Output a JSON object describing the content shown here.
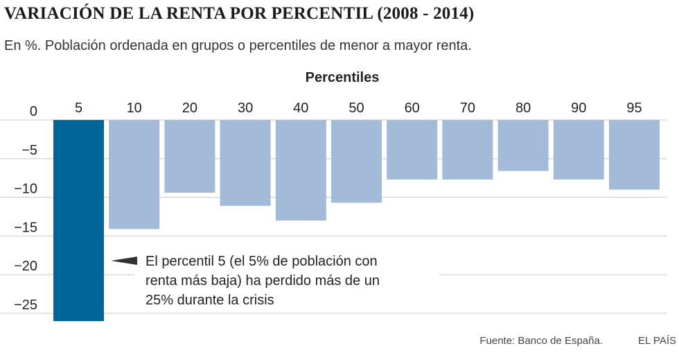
{
  "header": {
    "title": "VARIACIÓN DE LA RENTA POR PERCENTIL (2008 - 2014)",
    "subtitle": "En %. Población ordenada en grupos o percentiles de menor a mayor renta."
  },
  "chart_data": {
    "type": "bar",
    "orientation": "vertical-negative",
    "xlabel": "Percentiles",
    "xaxis_position": "top",
    "categories": [
      "5",
      "10",
      "20",
      "30",
      "40",
      "50",
      "60",
      "70",
      "80",
      "90",
      "95"
    ],
    "values": [
      -26,
      -14.1,
      -9.4,
      -11.1,
      -13,
      -10.7,
      -7.7,
      -7.7,
      -6.6,
      -7.7,
      -9
    ],
    "ylim": [
      -26,
      0
    ],
    "yticks": [
      0,
      -5,
      -10,
      -15,
      -20,
      -25
    ],
    "ytick_labels": [
      "0",
      "−5",
      "−10",
      "−15",
      "−20",
      "−25"
    ],
    "highlight_index": 0,
    "colors": {
      "highlight": "#006699",
      "default": "#a3bbd8",
      "grid": "#c8c8c8",
      "pointer": "#333333"
    },
    "annotation": {
      "target_index": 0,
      "lines": [
        "El percentil 5 (el 5% de población con",
        "renta más baja) ha perdido más de un",
        "25% durante la crisis"
      ]
    },
    "grid": true
  },
  "footer": {
    "source": "Fuente: Banco de España.",
    "brand": "EL PAÍS"
  }
}
